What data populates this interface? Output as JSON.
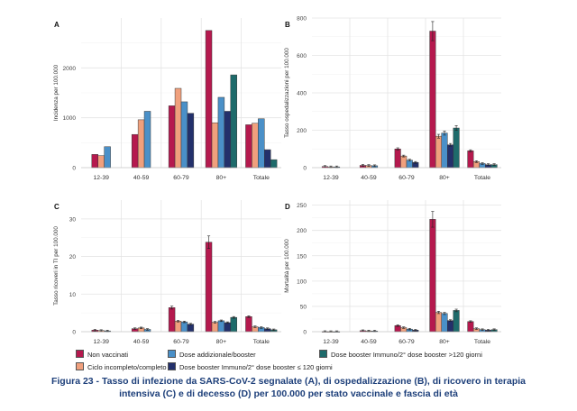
{
  "chart_data": [
    {
      "type": "bar",
      "panel_label": "A",
      "ylabel": "Incidenza per 100.000",
      "ylim": [
        0,
        3000
      ],
      "yticks": [
        0,
        1000,
        2000
      ],
      "error_bars": false,
      "categories": [
        "12-39",
        "40-59",
        "60-79",
        "80+",
        "Totale"
      ],
      "series": [
        {
          "name": "Non vaccinati",
          "values": [
            265,
            665,
            1240,
            2750,
            860
          ]
        },
        {
          "name": "Ciclo incompleto/completo",
          "values": [
            240,
            960,
            1590,
            900,
            890
          ]
        },
        {
          "name": "Dose addizionale/booster",
          "values": [
            420,
            1130,
            1320,
            1410,
            980
          ]
        },
        {
          "name": "Dose booster Immuno/2° dose booster ≤ 120 giorni",
          "values": [
            null,
            null,
            1090,
            1130,
            360
          ]
        },
        {
          "name": "Dose booster Immuno/2° dose booster >120 giorni",
          "values": [
            null,
            null,
            null,
            1860,
            160
          ]
        }
      ]
    },
    {
      "type": "bar",
      "panel_label": "B",
      "ylabel": "Tasso ospedalizzazioni per 100.000",
      "ylim": [
        0,
        800
      ],
      "yticks": [
        0,
        200,
        400,
        600,
        800
      ],
      "error_bars": true,
      "categories": [
        "12-39",
        "40-59",
        "60-79",
        "80+",
        "Totale"
      ],
      "series": [
        {
          "name": "Non vaccinati",
          "values": [
            6,
            12,
            100,
            730,
            90
          ]
        },
        {
          "name": "Ciclo incompleto/completo",
          "values": [
            4,
            11,
            62,
            168,
            32
          ]
        },
        {
          "name": "Dose addizionale/booster",
          "values": [
            4,
            10,
            40,
            185,
            22
          ]
        },
        {
          "name": "Dose booster Immuno/2° dose booster ≤ 120 giorni",
          "values": [
            null,
            null,
            28,
            122,
            16
          ]
        },
        {
          "name": "Dose booster Immuno/2° dose booster >120 giorni",
          "values": [
            null,
            null,
            null,
            212,
            16
          ]
        }
      ]
    },
    {
      "type": "bar",
      "panel_label": "C",
      "ylabel": "Tasso ricoveri in TI per 100.000",
      "ylim": [
        0,
        35
      ],
      "yticks": [
        0,
        10,
        20,
        30
      ],
      "error_bars": true,
      "categories": [
        "12-39",
        "40-59",
        "60-79",
        "80+",
        "Totale"
      ],
      "series": [
        {
          "name": "Non vaccinati",
          "values": [
            0.4,
            0.8,
            6.4,
            23.8,
            4.0
          ]
        },
        {
          "name": "Ciclo incompleto/completo",
          "values": [
            0.3,
            1.0,
            2.8,
            2.5,
            1.3
          ]
        },
        {
          "name": "Dose addizionale/booster",
          "values": [
            0.2,
            0.6,
            2.6,
            2.9,
            1.1
          ]
        },
        {
          "name": "Dose booster Immuno/2° dose booster ≤ 120 giorni",
          "values": [
            null,
            null,
            2.0,
            2.4,
            0.8
          ]
        },
        {
          "name": "Dose booster Immuno/2° dose booster >120 giorni",
          "values": [
            null,
            null,
            null,
            3.8,
            0.5
          ]
        }
      ]
    },
    {
      "type": "bar",
      "panel_label": "D",
      "ylabel": "Mortalità per 100.000",
      "ylim": [
        0,
        260
      ],
      "yticks": [
        0,
        50,
        100,
        150,
        200,
        250
      ],
      "error_bars": true,
      "categories": [
        "12-39",
        "40-59",
        "60-79",
        "80+",
        "Totale"
      ],
      "series": [
        {
          "name": "Non vaccinati",
          "values": [
            0.2,
            2,
            12,
            222,
            20
          ]
        },
        {
          "name": "Ciclo incompleto/completo",
          "values": [
            0.1,
            1.5,
            8,
            38,
            6
          ]
        },
        {
          "name": "Dose addizionale/booster",
          "values": [
            0.1,
            1.2,
            5,
            36,
            4
          ]
        },
        {
          "name": "Dose booster Immuno/2° dose booster ≤ 120 giorni",
          "values": [
            null,
            null,
            3,
            22,
            3
          ]
        },
        {
          "name": "Dose booster Immuno/2° dose booster >120 giorni",
          "values": [
            null,
            null,
            null,
            42,
            4
          ]
        }
      ]
    }
  ],
  "colors": [
    "#b5194e",
    "#f0a07d",
    "#4a90c8",
    "#23306b",
    "#1e6b6b"
  ],
  "legend": [
    "Non vaccinati",
    "Dose addizionale/booster",
    "Dose booster Immuno/2° dose booster >120 giorni",
    "Ciclo incompleto/completo",
    "Dose booster Immuno/2° dose booster ≤ 120 giorni"
  ],
  "caption": "Figura 23 - Tasso di infezione da SARS-CoV-2 segnalate (A), di ospedalizzazione (B), di ricovero in terapia intensiva (C) e di decesso (D) per 100.000 per stato vaccinale e fascia di età"
}
